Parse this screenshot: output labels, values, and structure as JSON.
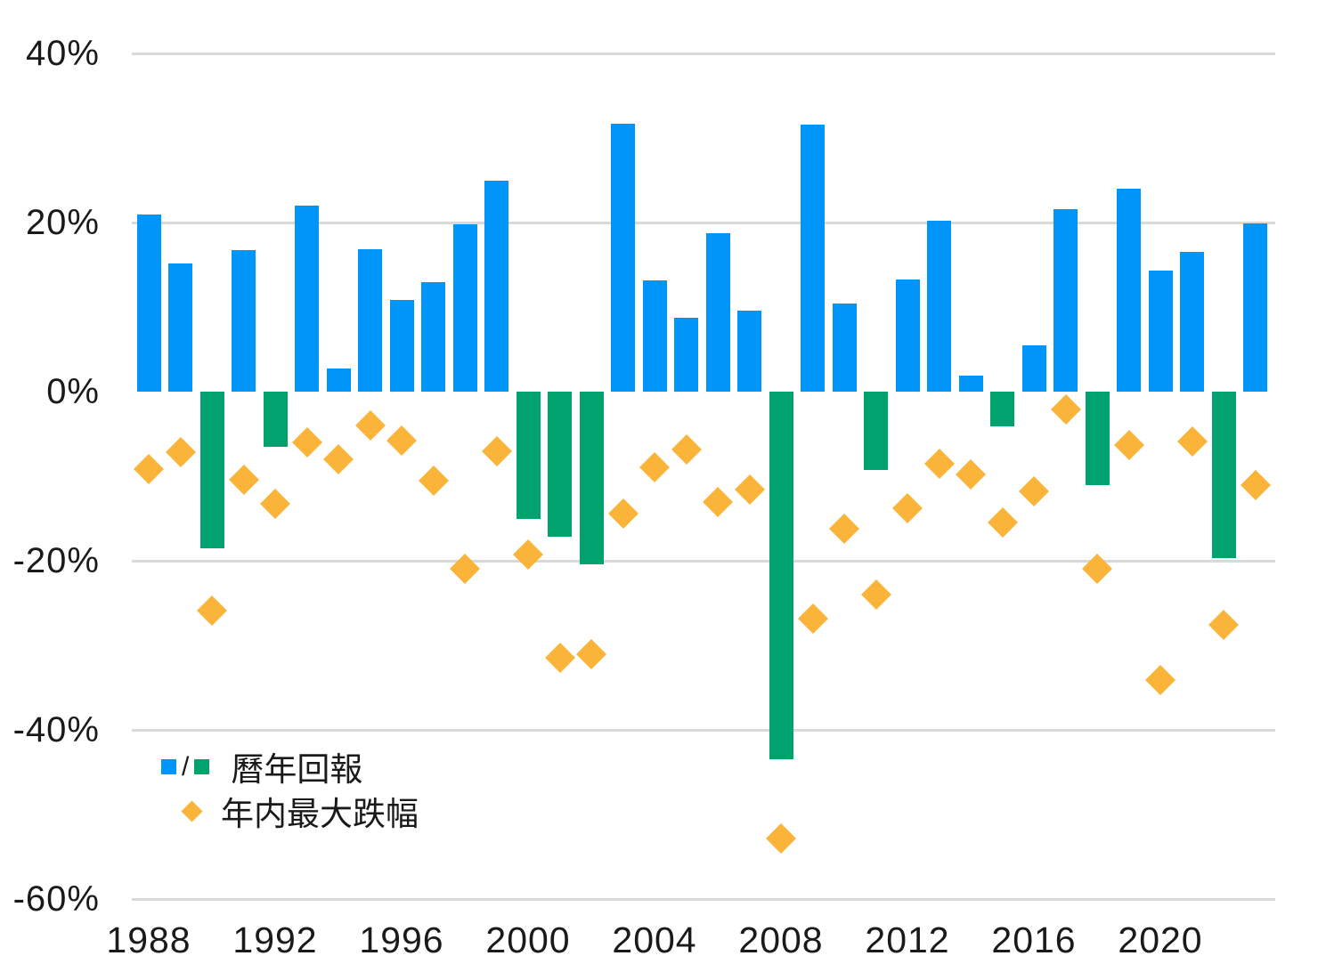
{
  "chart_data": {
    "type": "bar",
    "title": "",
    "categories": [
      1988,
      1989,
      1990,
      1991,
      1992,
      1993,
      1994,
      1995,
      1996,
      1997,
      1998,
      1999,
      2000,
      2001,
      2002,
      2003,
      2004,
      2005,
      2006,
      2007,
      2008,
      2009,
      2010,
      2011,
      2012,
      2013,
      2014,
      2015,
      2016,
      2017,
      2018,
      2019,
      2020,
      2021,
      2022,
      2023
    ],
    "series": [
      {
        "name": "曆年回報",
        "type": "bar",
        "values": [
          21.0,
          15.2,
          -18.5,
          16.7,
          -6.5,
          22.0,
          2.7,
          16.8,
          10.8,
          12.9,
          19.8,
          25.0,
          -15.0,
          -17.2,
          -20.4,
          31.7,
          13.2,
          8.7,
          18.7,
          9.6,
          -43.5,
          31.6,
          10.4,
          -9.3,
          13.3,
          20.2,
          1.9,
          -4.1,
          5.5,
          21.6,
          -11.1,
          24.0,
          14.3,
          16.5,
          -19.7,
          19.9
        ],
        "color_positive": "#0095f8",
        "color_negative": "#00a36e"
      },
      {
        "name": "年内最大跌幅",
        "type": "scatter",
        "marker": "diamond",
        "values": [
          -9.2,
          -7.2,
          -25.9,
          -10.4,
          -13.3,
          -6.0,
          -8.0,
          -4.0,
          -5.8,
          -10.5,
          -20.9,
          -7.0,
          -19.3,
          -31.5,
          -31.1,
          -14.4,
          -8.9,
          -6.8,
          -13.1,
          -11.6,
          -52.8,
          -26.8,
          -16.2,
          -24.0,
          -13.8,
          -8.5,
          -9.8,
          -15.5,
          -11.8,
          -2.1,
          -20.9,
          -6.3,
          -34.1,
          -5.9,
          -27.6,
          -11.0
        ],
        "color": "#fbb43a"
      }
    ],
    "y_axis": {
      "min": -60,
      "max": 40,
      "tick_step": 20,
      "ticks": [
        40,
        20,
        0,
        -20,
        -40,
        -60
      ],
      "tick_labels": [
        "40%",
        "20%",
        "0%",
        "-20%",
        "-40%",
        "-60%"
      ],
      "grid": true,
      "zero_line": false
    },
    "x_axis": {
      "tick_years": [
        1988,
        1992,
        1996,
        2000,
        2004,
        2008,
        2012,
        2016,
        2020
      ],
      "tick_labels": [
        "1988",
        "1992",
        "1996",
        "2000",
        "2004",
        "2008",
        "2012",
        "2016",
        "2020"
      ]
    },
    "legend": {
      "position": "inside-bottom-left",
      "separator": "/",
      "items": [
        {
          "label": "曆年回報",
          "swatches": [
            "#0095f8",
            "#00a36e"
          ],
          "shape": "square"
        },
        {
          "label": "年内最大跌幅",
          "swatches": [
            "#fbb43a"
          ],
          "shape": "diamond"
        }
      ]
    },
    "colors": {
      "bar_positive": "#0095f8",
      "bar_negative": "#00a36e",
      "drawdown_marker": "#fbb43a",
      "gridline": "#d9d9d9",
      "text": "#1a1a1a"
    }
  }
}
